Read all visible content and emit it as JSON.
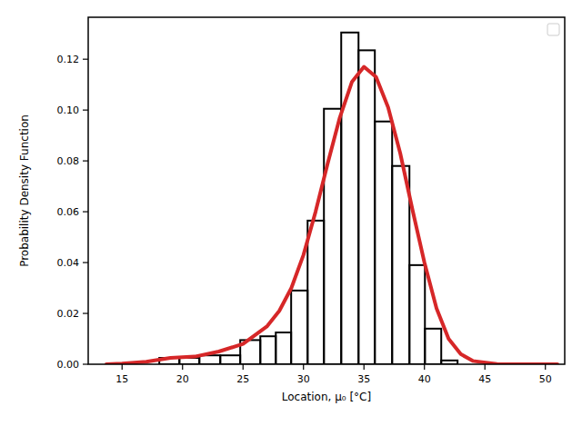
{
  "chart_data": {
    "type": "histogram",
    "x_label": "Location, μ₀ [°C]",
    "y_label": "Probability Density Function",
    "bins": [
      18.08,
      19.74,
      21.39,
      23.12,
      24.77,
      26.43,
      27.71,
      28.98,
      30.34,
      31.69,
      33.12,
      34.55,
      35.9,
      37.33,
      38.76,
      40.04,
      41.39,
      42.74
    ],
    "values": [
      0.0025,
      0.0025,
      0.0035,
      0.0035,
      0.0095,
      0.011,
      0.0125,
      0.029,
      0.0565,
      0.1005,
      0.1305,
      0.1235,
      0.0955,
      0.078,
      0.039,
      0.014,
      0.0015
    ],
    "color": "#000000",
    "series": [
      {
        "type": "line",
        "color": "#d62728",
        "x": [
          13.7,
          15,
          17,
          19,
          21,
          23,
          25,
          27,
          28,
          29,
          30,
          31,
          32,
          33,
          34,
          35,
          36,
          37,
          38,
          39,
          40,
          41,
          42,
          43,
          44,
          46,
          48,
          51
        ],
        "values": [
          0.0,
          0.0003,
          0.001,
          0.0025,
          0.003,
          0.005,
          0.008,
          0.015,
          0.021,
          0.03,
          0.043,
          0.06,
          0.079,
          0.097,
          0.111,
          0.117,
          0.113,
          0.101,
          0.083,
          0.061,
          0.04,
          0.022,
          0.01,
          0.004,
          0.0013,
          0.0001,
          0.0,
          0.0
        ]
      }
    ],
    "xlim": [
      12.2,
      51.6
    ],
    "ylim": [
      0,
      0.1365
    ],
    "xticks": [
      15,
      20,
      25,
      30,
      35,
      40,
      45,
      50
    ],
    "yticks": [
      {
        "value": 0,
        "label": "0.00"
      },
      {
        "value": 0.02,
        "label": "0.02"
      },
      {
        "value": 0.04,
        "label": "0.04"
      },
      {
        "value": 0.06,
        "label": "0.06"
      },
      {
        "value": 0.08,
        "label": "0.08"
      },
      {
        "value": 0.1,
        "label": "0.10"
      },
      {
        "value": 0.12,
        "label": "0.12"
      }
    ],
    "legend": "upper right"
  }
}
